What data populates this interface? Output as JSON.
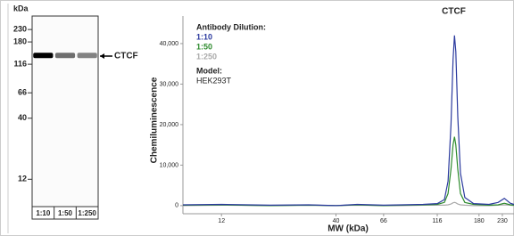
{
  "chart_data": [
    {
      "type": "blot",
      "y_label": "kDa",
      "categories": [
        "1:10",
        "1:50",
        "1:250"
      ],
      "values": [
        100,
        45,
        35
      ],
      "band_label": "CTCF",
      "band_position": 138,
      "ylog": true,
      "ylim": [
        7,
        300
      ],
      "yticks": [
        230,
        180,
        116,
        66,
        40,
        12
      ]
    },
    {
      "type": "line",
      "y_label": "Chemiluminescence",
      "x_label": "MW (kDa)",
      "peak_label": "CTCF",
      "peak_position": 138,
      "legend_title": "Antibody Dilution:",
      "note_title": "Model:",
      "note": "HEK293T",
      "xlog": true,
      "xlim": [
        8,
        260
      ],
      "xticks": [
        12,
        40,
        66,
        116,
        180,
        230
      ],
      "ylim": [
        -2000,
        46800
      ],
      "yticks": [
        0,
        {
          "value": 10000,
          "label": "10,000"
        },
        {
          "value": 20000,
          "label": "20,000"
        },
        {
          "value": 30000,
          "label": "30,000"
        },
        {
          "value": 40000,
          "label": "40,000"
        }
      ],
      "x": [
        8,
        12,
        20,
        30,
        40,
        50,
        66,
        80,
        100,
        116,
        125,
        130,
        134,
        137,
        139,
        141,
        144,
        148,
        155,
        170,
        200,
        220,
        235,
        250,
        260
      ],
      "series": [
        {
          "name": "1:10",
          "color": "#2b3a9e",
          "values": [
            200,
            300,
            100,
            200,
            0,
            300,
            100,
            200,
            300,
            500,
            1500,
            6000,
            20000,
            36000,
            42000,
            38000,
            22000,
            8000,
            2000,
            500,
            300,
            800,
            1800,
            600,
            300
          ]
        },
        {
          "name": "1:50",
          "color": "#2e8b2e",
          "values": [
            100,
            200,
            0,
            100,
            0,
            200,
            0,
            100,
            200,
            300,
            800,
            3000,
            9000,
            15000,
            17000,
            15000,
            9000,
            3000,
            800,
            300,
            100,
            200,
            600,
            200,
            100
          ]
        },
        {
          "name": "1:250",
          "color": "#aaaaaa",
          "values": [
            0,
            100,
            0,
            100,
            0,
            100,
            0,
            0,
            100,
            100,
            100,
            200,
            400,
            700,
            800,
            700,
            400,
            200,
            100,
            0,
            0,
            100,
            200,
            100,
            0
          ]
        }
      ]
    }
  ]
}
